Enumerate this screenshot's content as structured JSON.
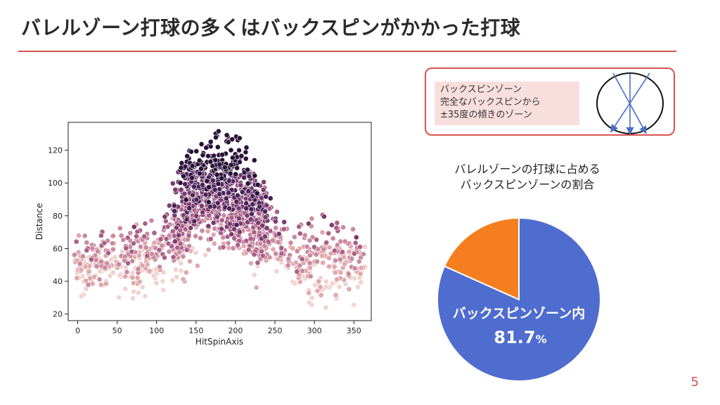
{
  "slide": {
    "title": "バレルゾーン打球の多くはバックスピンがかかった打球",
    "page_number": "5"
  },
  "callout": {
    "lines": [
      "バックスピンゾーン",
      "完全なバックスピンから",
      "±35度の傾きのゾーン"
    ]
  },
  "pie_title": {
    "line1": "バレルゾーンの打球に占める",
    "line2": "バックスピンゾーンの割合"
  },
  "colors": {
    "accent": "#d9534f",
    "pie_main": "#4f6ccf",
    "pie_other": "#f57f20",
    "callout_fill": "#f9dede"
  },
  "chart_data": [
    {
      "type": "scatter",
      "xlabel": "HitSpinAxis",
      "ylabel": "Distance",
      "xlim": [
        -12,
        372
      ],
      "ylim": [
        16,
        137
      ],
      "xticks": [
        0,
        50,
        100,
        150,
        200,
        250,
        300,
        350
      ],
      "yticks": [
        20,
        40,
        60,
        80,
        100,
        120
      ],
      "grid": false,
      "hue_palette": [
        "#f1d3cf",
        "#e0a8ac",
        "#c98a9e",
        "#a95f88",
        "#7a3b6e",
        "#4b2358",
        "#2a1238"
      ],
      "points_description": "Dense cloud; distance peaks ~120-133 near HitSpinAxis 150-220 and falls to ~40-60 at the edges (0-100 and 280-360). Outer low-distance points are light pink; the highest points are darkest purple.",
      "profile": {
        "x": [
          0,
          50,
          100,
          130,
          150,
          180,
          210,
          240,
          270,
          300,
          350
        ],
        "center_y": [
          52,
          52,
          56,
          78,
          92,
          96,
          90,
          74,
          54,
          52,
          52
        ],
        "max_y": [
          68,
          72,
          80,
          112,
          126,
          133,
          128,
          100,
          68,
          86,
          72
        ]
      }
    },
    {
      "type": "pie",
      "labels": [
        "バックスピンゾーン内",
        ""
      ],
      "values": [
        81.7,
        18.3
      ],
      "colors": [
        "#4f6ccf",
        "#f57f20"
      ],
      "data_label": "81.7",
      "data_label_unit": "%"
    }
  ]
}
